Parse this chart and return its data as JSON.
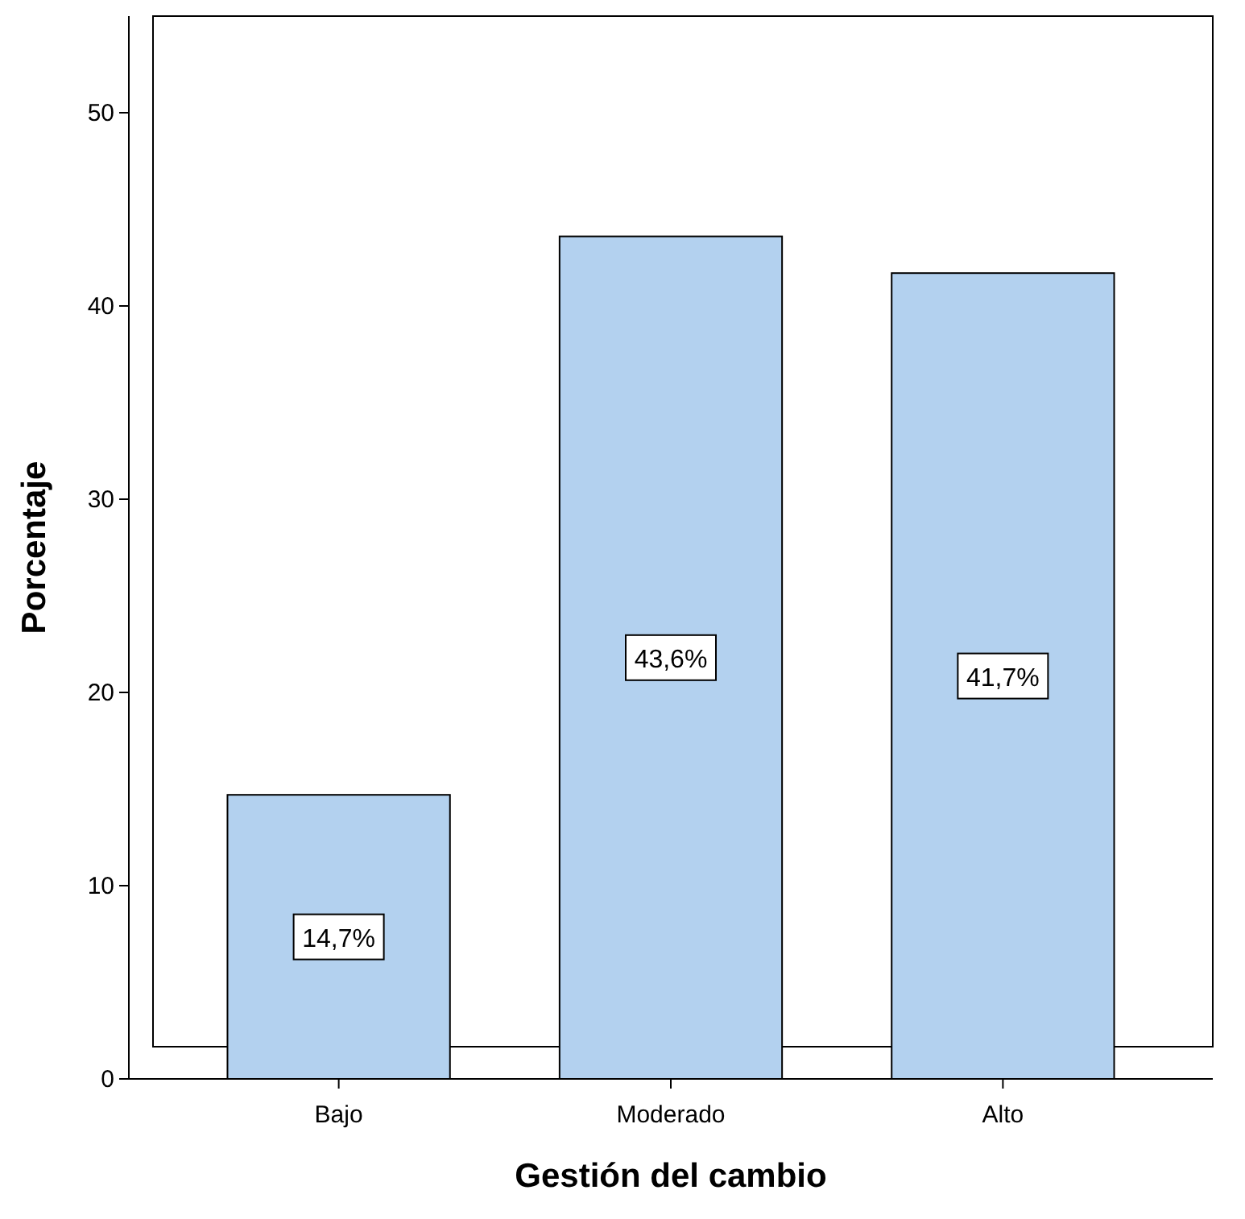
{
  "chart_data": {
    "type": "bar",
    "xlabel": "Gestión del cambio",
    "ylabel": "Porcentaje",
    "categories": [
      "Bajo",
      "Moderado",
      "Alto"
    ],
    "values": [
      14.7,
      43.6,
      41.7
    ],
    "value_labels": [
      "14,7%",
      "43,6%",
      "41,7%"
    ],
    "color": "#b3d1ef",
    "ylim": [
      0,
      55
    ],
    "yticks": [
      0,
      10,
      20,
      30,
      40,
      50
    ],
    "grid": false
  }
}
